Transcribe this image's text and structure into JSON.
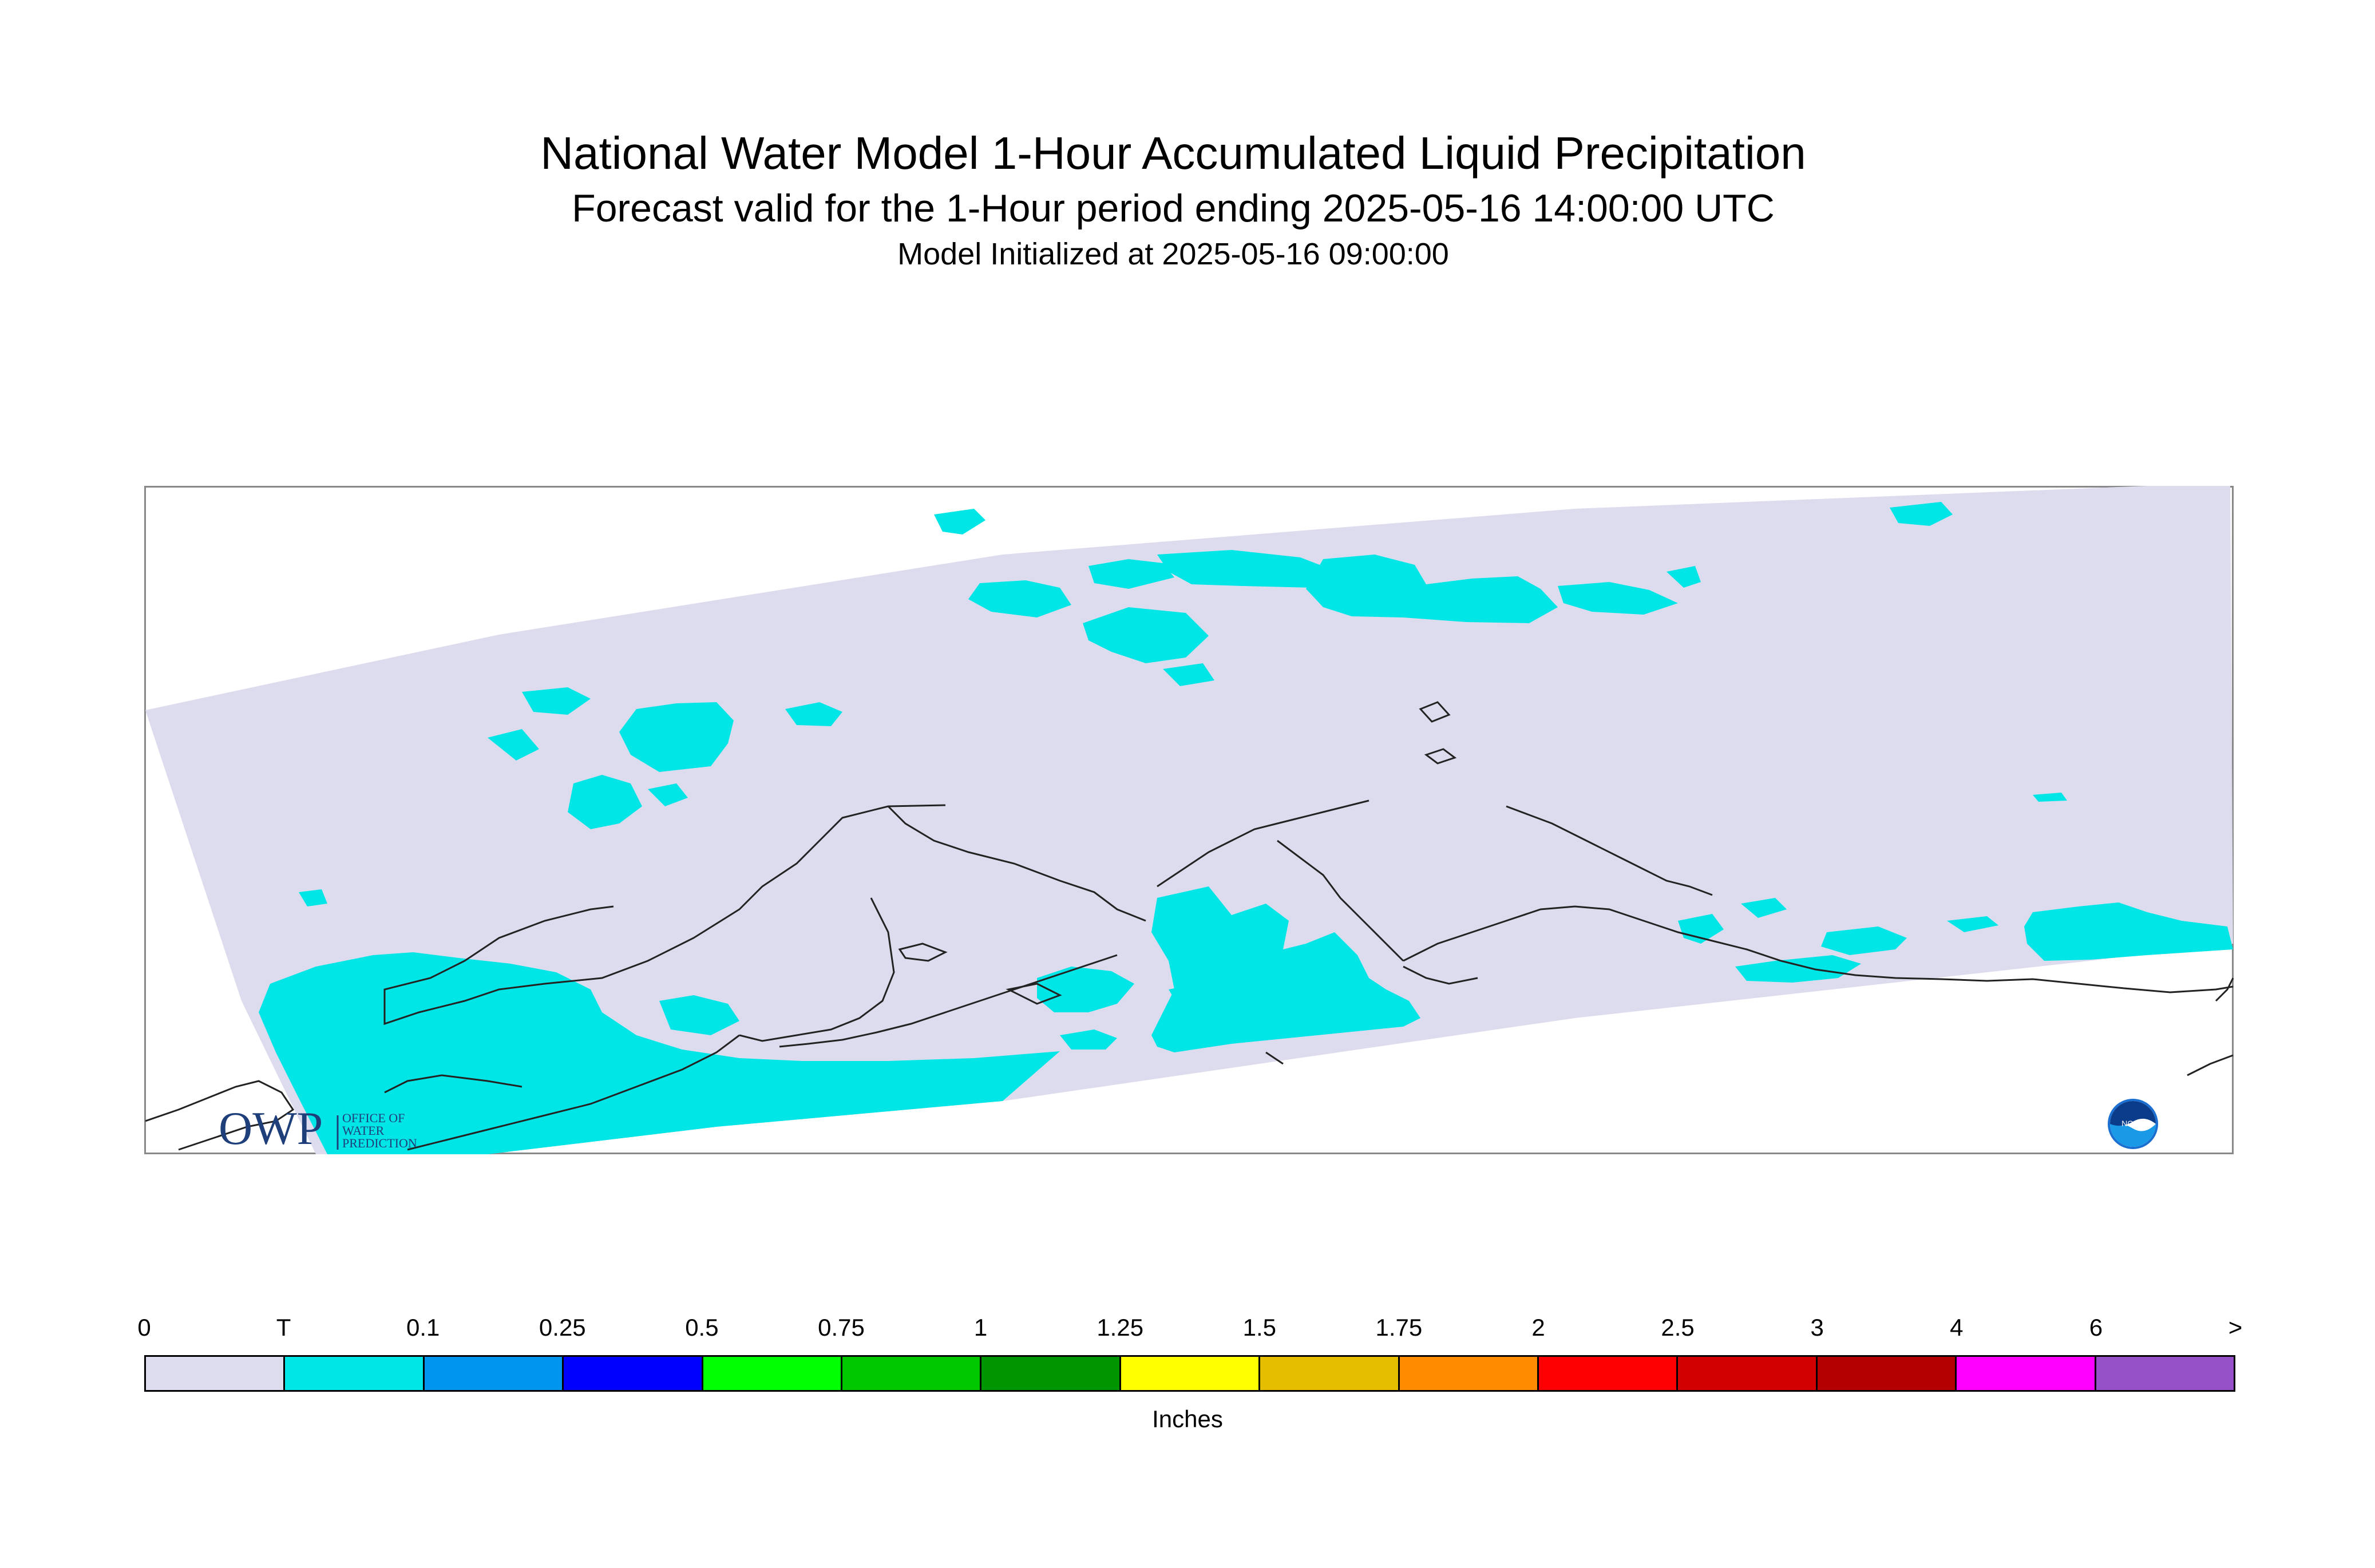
{
  "title": "National Water Model 1-Hour Accumulated Liquid Precipitation",
  "subtitle": "Forecast valid for the 1-Hour period ending 2025-05-16 14:00:00 UTC",
  "init_line": "Model Initialized at 2025-05-16 09:00:00",
  "logos": {
    "owp_mark": "OWP",
    "owp_text": [
      "OFFICE OF",
      "WATER",
      "PREDICTION"
    ],
    "noaa_text": "NOAA"
  },
  "map": {
    "region": "Alaska",
    "domain_fill": "#dcdcee",
    "precip_fill": "#00e6e6",
    "coast_color": "#222222"
  },
  "legend": {
    "ticks": [
      "0",
      "T",
      "0.1",
      "0.25",
      "0.5",
      "0.75",
      "1",
      "1.25",
      "1.5",
      "1.75",
      "2",
      "2.5",
      "3",
      "4",
      "6",
      ">"
    ],
    "colors": [
      "#dcdcee",
      "#00e6e6",
      "#0096f0",
      "#0000ff",
      "#00ff00",
      "#00c800",
      "#009600",
      "#ffff00",
      "#e6be00",
      "#ff8c00",
      "#ff0000",
      "#d20000",
      "#b40000",
      "#ff00ff",
      "#9650c8"
    ],
    "units": "Inches"
  }
}
